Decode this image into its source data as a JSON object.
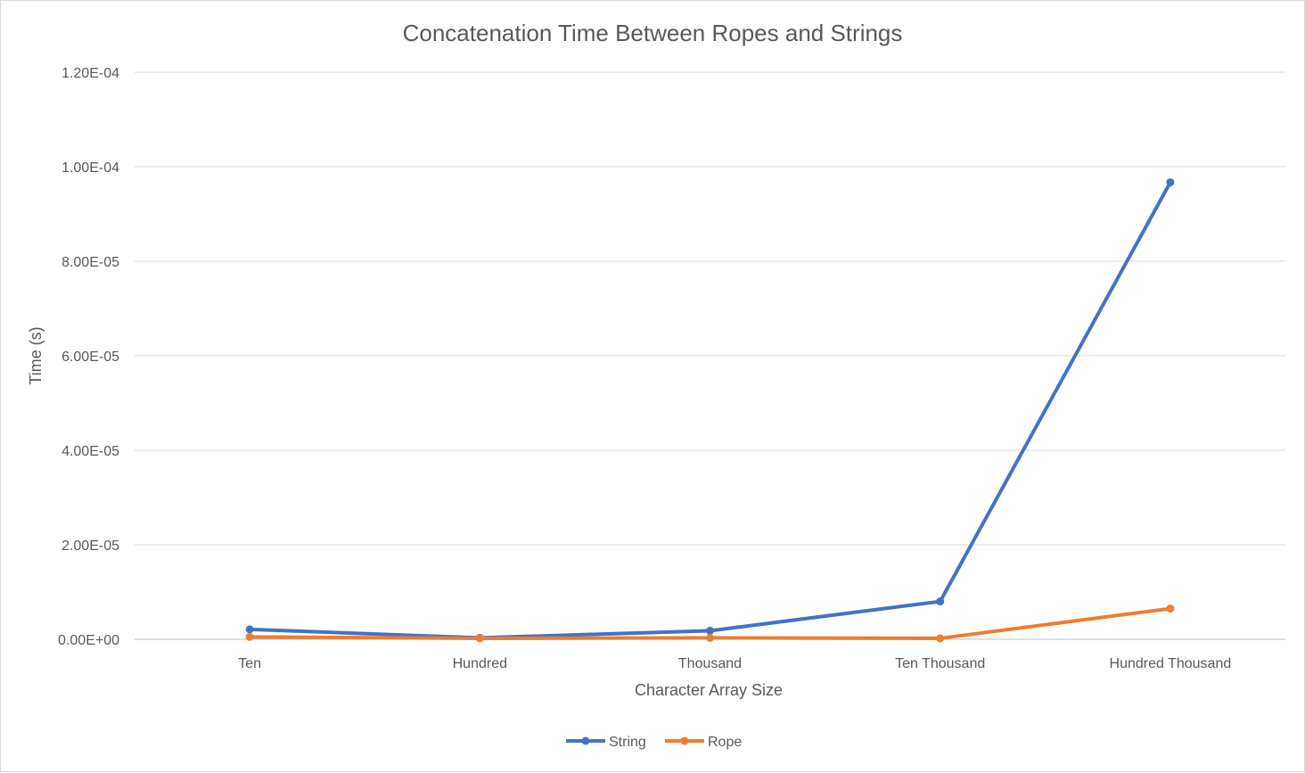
{
  "chart_data": {
    "type": "line",
    "title": "Concatenation Time Between Ropes and Strings",
    "xlabel": "Character Array Size",
    "ylabel": "Time (s)",
    "categories": [
      "Ten",
      "Hundred",
      "Thousand",
      "Ten Thousand",
      "Hundred Thousand"
    ],
    "y_ticks": [
      "0.00E+00",
      "2.00E-05",
      "4.00E-05",
      "6.00E-05",
      "8.00E-05",
      "1.00E-04",
      "1.20E-04"
    ],
    "ylim": [
      0,
      0.00012
    ],
    "grid": true,
    "legend_position": "bottom",
    "series": [
      {
        "name": "String",
        "color": "#4472c4",
        "values": [
          2.1e-06,
          3e-07,
          1.8e-06,
          8e-06,
          9.67e-05
        ]
      },
      {
        "name": "Rope",
        "color": "#ed7d31",
        "values": [
          5e-07,
          2e-07,
          3e-07,
          2e-07,
          6.5e-06
        ]
      }
    ]
  }
}
